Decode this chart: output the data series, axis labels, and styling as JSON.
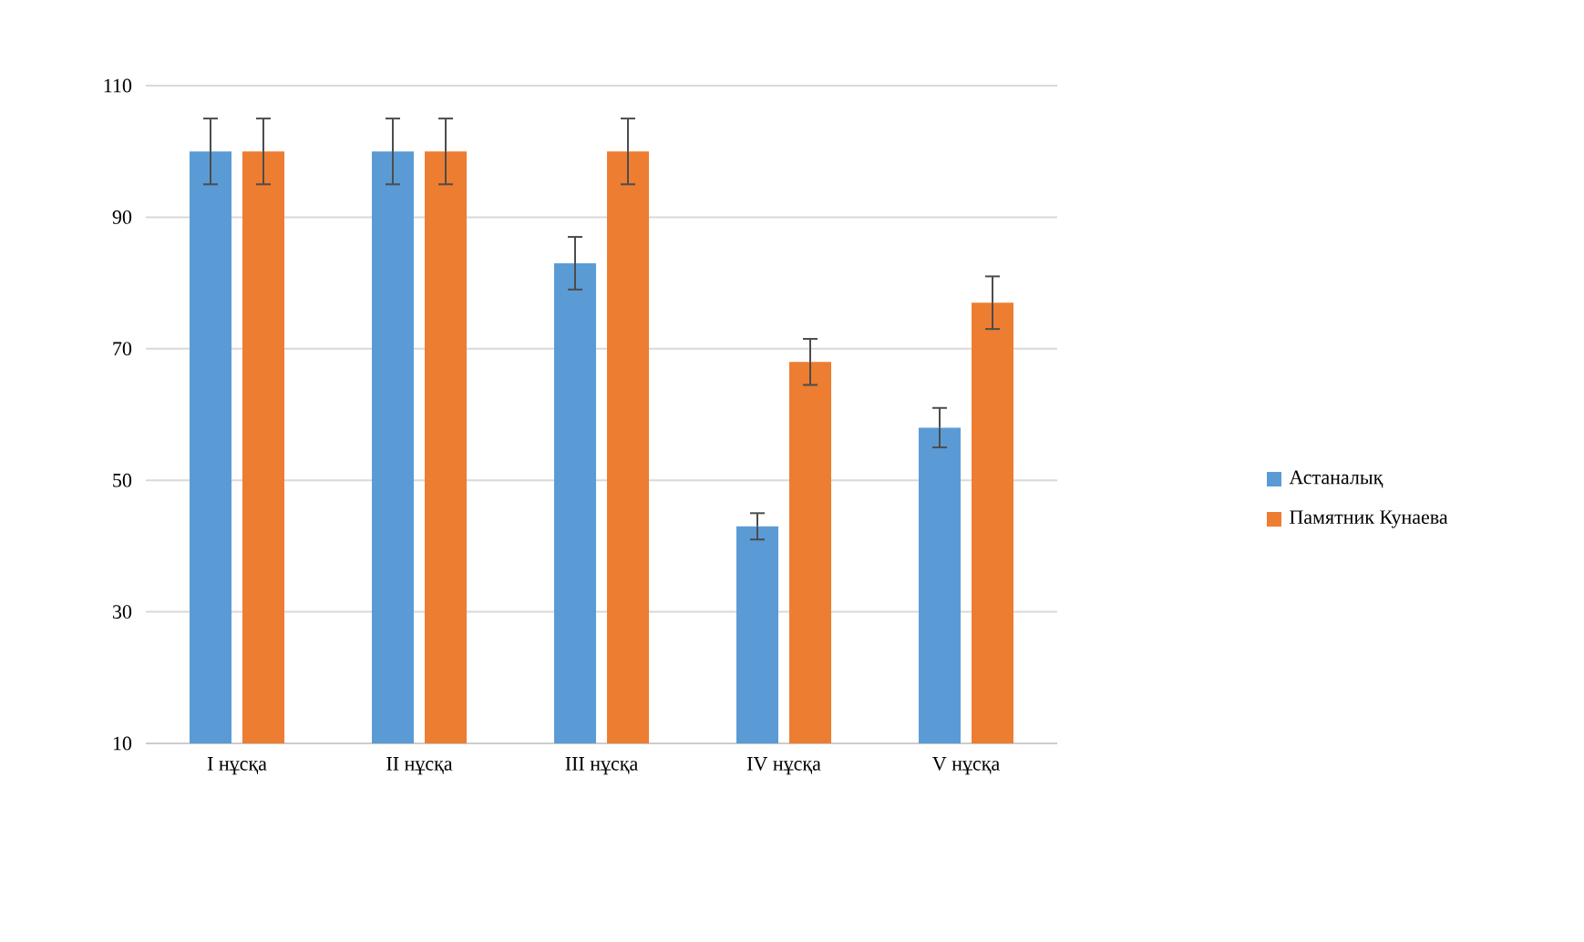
{
  "chart_data": {
    "type": "bar",
    "categories": [
      "I нұсқа",
      "II нұсқа",
      "III нұсқа",
      "IV нұсқа",
      "V нұсқа"
    ],
    "series": [
      {
        "name": "Астаналық",
        "color": "#5b9bd5",
        "values": [
          100,
          100,
          83,
          43,
          58
        ],
        "errors": [
          5,
          5,
          4,
          2,
          3
        ]
      },
      {
        "name": "Памятник Кунаева",
        "color": "#ed7d31",
        "values": [
          100,
          100,
          100,
          68,
          77
        ],
        "errors": [
          5,
          5,
          5,
          3.5,
          4
        ]
      }
    ],
    "ylim": [
      10,
      110
    ],
    "yticks": [
      10,
      30,
      50,
      70,
      90,
      110
    ],
    "grid": "y",
    "legend": "right"
  }
}
